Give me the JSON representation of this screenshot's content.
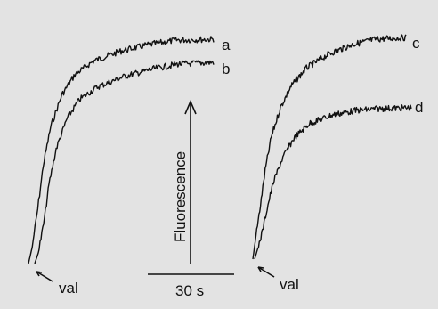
{
  "chart_data": [
    {
      "type": "line",
      "title": "",
      "xlabel": "",
      "ylabel": "Fluorescence",
      "series": [
        {
          "name": "a",
          "x": [
            0,
            2,
            5,
            8,
            12,
            18,
            25,
            35,
            50,
            65,
            80,
            100
          ],
          "y": [
            0,
            18,
            60,
            108,
            150,
            185,
            207,
            222,
            233,
            240,
            245,
            246
          ]
        },
        {
          "name": "b",
          "x": [
            0,
            2,
            5,
            8,
            12,
            18,
            25,
            35,
            50,
            65,
            80,
            100
          ],
          "y": [
            0,
            12,
            45,
            90,
            130,
            164,
            186,
            200,
            212,
            220,
            226,
            228
          ]
        }
      ],
      "annotations": [
        "val"
      ]
    },
    {
      "type": "line",
      "title": "",
      "xlabel": "",
      "ylabel": "",
      "series": [
        {
          "name": "c",
          "x": [
            0,
            2,
            5,
            8,
            12,
            18,
            25,
            35,
            50,
            65,
            80,
            100
          ],
          "y": [
            0,
            25,
            60,
            98,
            135,
            168,
            192,
            212,
            228,
            238,
            244,
            246
          ]
        },
        {
          "name": "d",
          "x": [
            0,
            2,
            5,
            8,
            12,
            18,
            25,
            35,
            50,
            65,
            80,
            100
          ],
          "y": [
            0,
            12,
            32,
            58,
            88,
            116,
            138,
            155,
            165,
            170,
            172,
            173
          ]
        }
      ],
      "annotations": [
        "val"
      ]
    }
  ],
  "scale_bar": {
    "time_label": "30 s",
    "axis_label": "Fluorescence"
  },
  "colors": {
    "background": "#e3e3e3",
    "ink": "#111111"
  }
}
